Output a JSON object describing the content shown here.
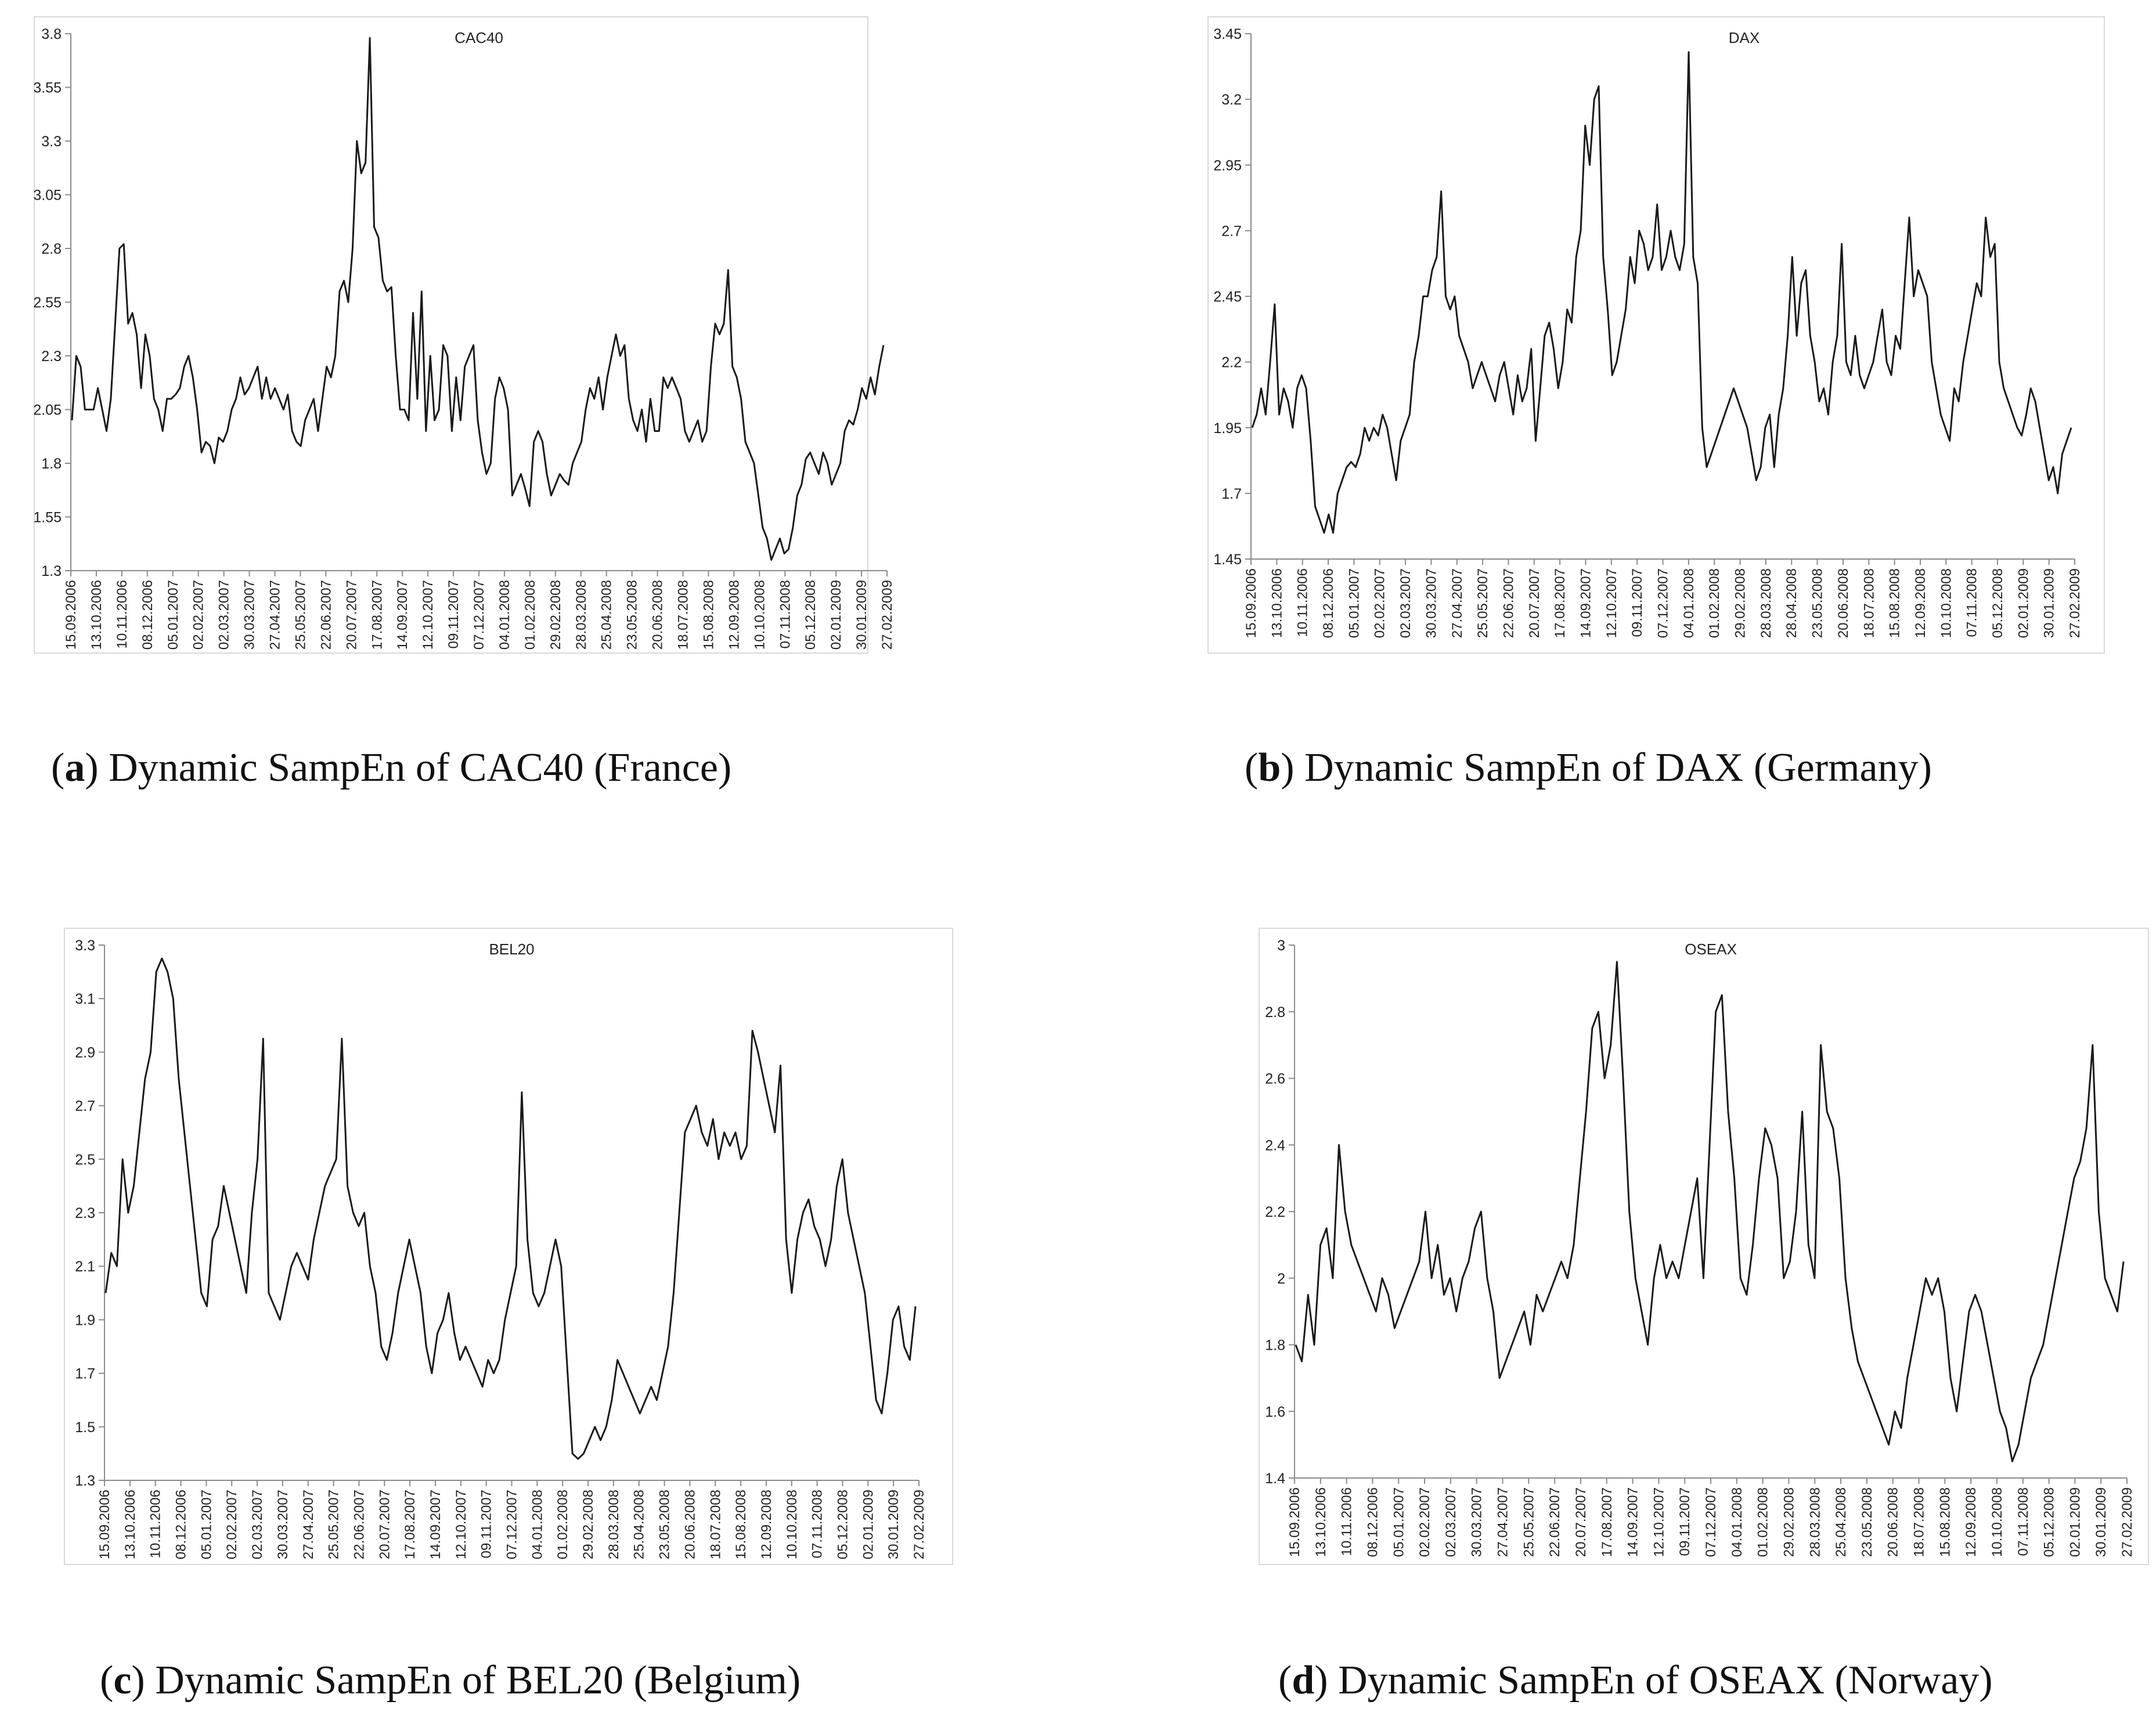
{
  "chart_data": [
    {
      "type": "line",
      "title": "CAC40",
      "caption_letter": "a",
      "caption_text": "Dynamic SampEn of CAC40 (France)",
      "ylim": [
        1.3,
        3.8
      ],
      "yticks": [
        "1.3",
        "1.55",
        "1.8",
        "2.05",
        "2.3",
        "2.55",
        "2.8",
        "3.05",
        "3.3",
        "3.55",
        "3.8"
      ],
      "ytick_values": [
        1.3,
        1.55,
        1.8,
        2.05,
        2.3,
        2.55,
        2.8,
        3.05,
        3.3,
        3.55,
        3.8
      ],
      "xticks": [
        "15.09.2006",
        "13.10.2006",
        "10.11.2006",
        "08.12.2006",
        "05.01.2007",
        "02.02.2007",
        "02.03.2007",
        "30.03.2007",
        "27.04.2007",
        "25.05.2007",
        "22.06.2007",
        "20.07.2007",
        "17.08.2007",
        "14.09.2007",
        "12.10.2007",
        "09.11.2007",
        "07.12.2007",
        "04.01.2008",
        "01.02.2008",
        "29.02.2008",
        "28.03.2008",
        "25.04.2008",
        "23.05.2008",
        "20.06.2008",
        "18.07.2008",
        "15.08.2008",
        "12.09.2008",
        "10.10.2008",
        "07.11.2008",
        "05.12.2008",
        "02.01.2009",
        "30.01.2009",
        "27.02.2009"
      ],
      "series": [
        {
          "name": "CAC40",
          "values": [
            2.0,
            2.3,
            2.25,
            2.05,
            2.05,
            2.05,
            2.15,
            2.05,
            1.95,
            2.1,
            2.45,
            2.8,
            2.82,
            2.45,
            2.5,
            2.4,
            2.15,
            2.4,
            2.3,
            2.1,
            2.05,
            1.95,
            2.1,
            2.1,
            2.12,
            2.15,
            2.25,
            2.3,
            2.2,
            2.05,
            1.85,
            1.9,
            1.88,
            1.8,
            1.92,
            1.9,
            1.95,
            2.05,
            2.1,
            2.2,
            2.12,
            2.15,
            2.2,
            2.25,
            2.1,
            2.2,
            2.1,
            2.15,
            2.1,
            2.05,
            2.12,
            1.95,
            1.9,
            1.88,
            2.0,
            2.05,
            2.1,
            1.95,
            2.1,
            2.25,
            2.2,
            2.3,
            2.6,
            2.65,
            2.55,
            2.8,
            3.3,
            3.15,
            3.2,
            3.78,
            2.9,
            2.85,
            2.65,
            2.6,
            2.62,
            2.3,
            2.05,
            2.05,
            2.0,
            2.5,
            2.1,
            2.6,
            1.95,
            2.3,
            2.0,
            2.05,
            2.35,
            2.3,
            1.95,
            2.2,
            2.0,
            2.25,
            2.3,
            2.35,
            2.0,
            1.85,
            1.75,
            1.8,
            2.1,
            2.2,
            2.15,
            2.05,
            1.65,
            1.7,
            1.75,
            1.68,
            1.6,
            1.9,
            1.95,
            1.9,
            1.75,
            1.65,
            1.7,
            1.75,
            1.72,
            1.7,
            1.8,
            1.85,
            1.9,
            2.05,
            2.15,
            2.1,
            2.2,
            2.05,
            2.2,
            2.3,
            2.4,
            2.3,
            2.35,
            2.1,
            2.0,
            1.95,
            2.05,
            1.9,
            2.1,
            1.95,
            1.95,
            2.2,
            2.15,
            2.2,
            2.15,
            2.1,
            1.95,
            1.9,
            1.95,
            2.0,
            1.9,
            1.95,
            2.25,
            2.45,
            2.4,
            2.45,
            2.7,
            2.25,
            2.2,
            2.1,
            1.9,
            1.85,
            1.8,
            1.65,
            1.5,
            1.45,
            1.35,
            1.4,
            1.45,
            1.38,
            1.4,
            1.5,
            1.65,
            1.7,
            1.82,
            1.85,
            1.8,
            1.75,
            1.85,
            1.8,
            1.7,
            1.75,
            1.8,
            1.95,
            2.0,
            1.98,
            2.05,
            2.15,
            2.1,
            2.2,
            2.12,
            2.25,
            2.35
          ]
        }
      ]
    },
    {
      "type": "line",
      "title": "DAX",
      "caption_letter": "b",
      "caption_text": "Dynamic SampEn of DAX (Germany)",
      "ylim": [
        1.45,
        3.45
      ],
      "yticks": [
        "1.45",
        "1.7",
        "1.95",
        "2.2",
        "2.45",
        "2.7",
        "2.95",
        "3.2",
        "3.45"
      ],
      "ytick_values": [
        1.45,
        1.7,
        1.95,
        2.2,
        2.45,
        2.7,
        2.95,
        3.2,
        3.45
      ],
      "xticks": [
        "15.09.2006",
        "13.10.2006",
        "10.11.2006",
        "08.12.2006",
        "05.01.2007",
        "02.02.2007",
        "02.03.2007",
        "30.03.2007",
        "27.04.2007",
        "25.05.2007",
        "22.06.2007",
        "20.07.2007",
        "17.08.2007",
        "14.09.2007",
        "12.10.2007",
        "09.11.2007",
        "07.12.2007",
        "04.01.2008",
        "01.02.2008",
        "29.02.2008",
        "28.03.2008",
        "28.04.2008",
        "23.05.2008",
        "20.06.2008",
        "18.07.2008",
        "15.08.2008",
        "12.09.2008",
        "10.10.2008",
        "07.11.2008",
        "05.12.2008",
        "02.01.2009",
        "30.01.2009",
        "27.02.2009"
      ],
      "series": [
        {
          "name": "DAX",
          "values": [
            1.95,
            2.0,
            2.1,
            2.0,
            2.2,
            2.42,
            2.0,
            2.1,
            2.05,
            1.95,
            2.1,
            2.15,
            2.1,
            1.9,
            1.65,
            1.6,
            1.55,
            1.62,
            1.55,
            1.7,
            1.75,
            1.8,
            1.82,
            1.8,
            1.85,
            1.95,
            1.9,
            1.95,
            1.92,
            2.0,
            1.95,
            1.85,
            1.75,
            1.9,
            1.95,
            2.0,
            2.2,
            2.3,
            2.45,
            2.45,
            2.55,
            2.6,
            2.85,
            2.45,
            2.4,
            2.45,
            2.3,
            2.25,
            2.2,
            2.1,
            2.15,
            2.2,
            2.15,
            2.1,
            2.05,
            2.15,
            2.2,
            2.1,
            2.0,
            2.15,
            2.05,
            2.1,
            2.25,
            1.9,
            2.1,
            2.3,
            2.35,
            2.25,
            2.1,
            2.2,
            2.4,
            2.35,
            2.6,
            2.7,
            3.1,
            2.95,
            3.2,
            3.25,
            2.6,
            2.4,
            2.15,
            2.2,
            2.3,
            2.4,
            2.6,
            2.5,
            2.7,
            2.65,
            2.55,
            2.6,
            2.8,
            2.55,
            2.6,
            2.7,
            2.6,
            2.55,
            2.65,
            3.38,
            2.6,
            2.5,
            1.95,
            1.8,
            1.85,
            1.9,
            1.95,
            2.0,
            2.05,
            2.1,
            2.05,
            2.0,
            1.95,
            1.85,
            1.75,
            1.8,
            1.95,
            2.0,
            1.8,
            2.0,
            2.1,
            2.3,
            2.6,
            2.3,
            2.5,
            2.55,
            2.3,
            2.2,
            2.05,
            2.1,
            2.0,
            2.2,
            2.3,
            2.65,
            2.2,
            2.15,
            2.3,
            2.15,
            2.1,
            2.15,
            2.2,
            2.3,
            2.4,
            2.2,
            2.15,
            2.3,
            2.25,
            2.5,
            2.75,
            2.45,
            2.55,
            2.5,
            2.45,
            2.2,
            2.1,
            2.0,
            1.95,
            1.9,
            2.1,
            2.05,
            2.2,
            2.3,
            2.4,
            2.5,
            2.45,
            2.75,
            2.6,
            2.65,
            2.2,
            2.1,
            2.05,
            2.0,
            1.95,
            1.92,
            2.0,
            2.1,
            2.05,
            1.95,
            1.85,
            1.75,
            1.8,
            1.7,
            1.85,
            1.9,
            1.95
          ]
        }
      ]
    },
    {
      "type": "line",
      "title": "BEL20",
      "caption_letter": "c",
      "caption_text": "Dynamic SampEn of BEL20 (Belgium)",
      "ylim": [
        1.3,
        3.3
      ],
      "yticks": [
        "1.3",
        "1.5",
        "1.7",
        "1.9",
        "2.1",
        "2.3",
        "2.5",
        "2.7",
        "2.9",
        "3.1",
        "3.3"
      ],
      "ytick_values": [
        1.3,
        1.5,
        1.7,
        1.9,
        2.1,
        2.3,
        2.5,
        2.7,
        2.9,
        3.1,
        3.3
      ],
      "xticks": [
        "15.09.2006",
        "13.10.2006",
        "10.11.2006",
        "08.12.2006",
        "05.01.2007",
        "02.02.2007",
        "02.03.2007",
        "30.03.2007",
        "27.04.2007",
        "25.05.2007",
        "22.06.2007",
        "20.07.2007",
        "17.08.2007",
        "14.09.2007",
        "12.10.2007",
        "09.11.2007",
        "07.12.2007",
        "04.01.2008",
        "01.02.2008",
        "29.02.2008",
        "28.03.2008",
        "25.04.2008",
        "23.05.2008",
        "20.06.2008",
        "18.07.2008",
        "15.08.2008",
        "12.09.2008",
        "10.10.2008",
        "07.11.2008",
        "05.12.2008",
        "02.01.2009",
        "30.01.2009",
        "27.02.2009"
      ],
      "series": [
        {
          "name": "BEL20",
          "values": [
            2.0,
            2.15,
            2.1,
            2.5,
            2.3,
            2.4,
            2.6,
            2.8,
            2.9,
            3.2,
            3.25,
            3.2,
            3.1,
            2.8,
            2.6,
            2.4,
            2.2,
            2.0,
            1.95,
            2.2,
            2.25,
            2.4,
            2.3,
            2.2,
            2.1,
            2.0,
            2.3,
            2.5,
            2.95,
            2.0,
            1.95,
            1.9,
            2.0,
            2.1,
            2.15,
            2.1,
            2.05,
            2.2,
            2.3,
            2.4,
            2.45,
            2.5,
            2.95,
            2.4,
            2.3,
            2.25,
            2.3,
            2.1,
            2.0,
            1.8,
            1.75,
            1.85,
            2.0,
            2.1,
            2.2,
            2.1,
            2.0,
            1.8,
            1.7,
            1.85,
            1.9,
            2.0,
            1.85,
            1.75,
            1.8,
            1.75,
            1.7,
            1.65,
            1.75,
            1.7,
            1.75,
            1.9,
            2.0,
            2.1,
            2.75,
            2.2,
            2.0,
            1.95,
            2.0,
            2.1,
            2.2,
            2.1,
            1.75,
            1.4,
            1.38,
            1.4,
            1.45,
            1.5,
            1.45,
            1.5,
            1.6,
            1.75,
            1.7,
            1.65,
            1.6,
            1.55,
            1.6,
            1.65,
            1.6,
            1.7,
            1.8,
            2.0,
            2.3,
            2.6,
            2.65,
            2.7,
            2.6,
            2.55,
            2.65,
            2.5,
            2.6,
            2.55,
            2.6,
            2.5,
            2.55,
            2.98,
            2.9,
            2.8,
            2.7,
            2.6,
            2.85,
            2.2,
            2.0,
            2.2,
            2.3,
            2.35,
            2.25,
            2.2,
            2.1,
            2.2,
            2.4,
            2.5,
            2.3,
            2.2,
            2.1,
            2.0,
            1.8,
            1.6,
            1.55,
            1.7,
            1.9,
            1.95,
            1.8,
            1.75,
            1.95
          ]
        }
      ]
    },
    {
      "type": "line",
      "title": "OSEAX",
      "caption_letter": "d",
      "caption_text": "Dynamic SampEn of OSEAX (Norway)",
      "ylim": [
        1.4,
        3.0
      ],
      "yticks": [
        "1.4",
        "1.6",
        "1.8",
        "2",
        "2.2",
        "2.4",
        "2.6",
        "2.8",
        "3"
      ],
      "ytick_values": [
        1.4,
        1.6,
        1.8,
        2.0,
        2.2,
        2.4,
        2.6,
        2.8,
        3.0
      ],
      "xticks": [
        "15.09.2006",
        "13.10.2006",
        "10.11.2006",
        "08.12.2006",
        "05.01.2007",
        "02.02.2007",
        "02.03.2007",
        "30.03.2007",
        "27.04.2007",
        "25.05.2007",
        "22.06.2007",
        "20.07.2007",
        "17.08.2007",
        "14.09.2007",
        "12.10.2007",
        "09.11.2007",
        "07.12.2007",
        "04.01.2008",
        "01.02.2008",
        "29.02.2008",
        "28.03.2008",
        "25.04.2008",
        "23.05.2008",
        "20.06.2008",
        "18.07.2008",
        "15.08.2008",
        "12.09.2008",
        "10.10.2008",
        "07.11.2008",
        "05.12.2008",
        "02.01.2009",
        "30.01.2009",
        "27.02.2009"
      ],
      "series": [
        {
          "name": "OSEAX",
          "values": [
            1.8,
            1.75,
            1.95,
            1.8,
            2.1,
            2.15,
            2.0,
            2.4,
            2.2,
            2.1,
            2.05,
            2.0,
            1.95,
            1.9,
            2.0,
            1.95,
            1.85,
            1.9,
            1.95,
            2.0,
            2.05,
            2.2,
            2.0,
            2.1,
            1.95,
            2.0,
            1.9,
            2.0,
            2.05,
            2.15,
            2.2,
            2.0,
            1.9,
            1.7,
            1.75,
            1.8,
            1.85,
            1.9,
            1.8,
            1.95,
            1.9,
            1.95,
            2.0,
            2.05,
            2.0,
            2.1,
            2.3,
            2.5,
            2.75,
            2.8,
            2.6,
            2.7,
            2.95,
            2.6,
            2.2,
            2.0,
            1.9,
            1.8,
            2.0,
            2.1,
            2.0,
            2.05,
            2.0,
            2.1,
            2.2,
            2.3,
            2.0,
            2.4,
            2.8,
            2.85,
            2.5,
            2.3,
            2.0,
            1.95,
            2.1,
            2.3,
            2.45,
            2.4,
            2.3,
            2.0,
            2.05,
            2.2,
            2.5,
            2.1,
            2.0,
            2.7,
            2.5,
            2.45,
            2.3,
            2.0,
            1.85,
            1.75,
            1.7,
            1.65,
            1.6,
            1.55,
            1.5,
            1.6,
            1.55,
            1.7,
            1.8,
            1.9,
            2.0,
            1.95,
            2.0,
            1.9,
            1.7,
            1.6,
            1.75,
            1.9,
            1.95,
            1.9,
            1.8,
            1.7,
            1.6,
            1.55,
            1.45,
            1.5,
            1.6,
            1.7,
            1.75,
            1.8,
            1.9,
            2.0,
            2.1,
            2.2,
            2.3,
            2.35,
            2.45,
            2.7,
            2.2,
            2.0,
            1.95,
            1.9,
            2.05
          ]
        }
      ]
    }
  ]
}
